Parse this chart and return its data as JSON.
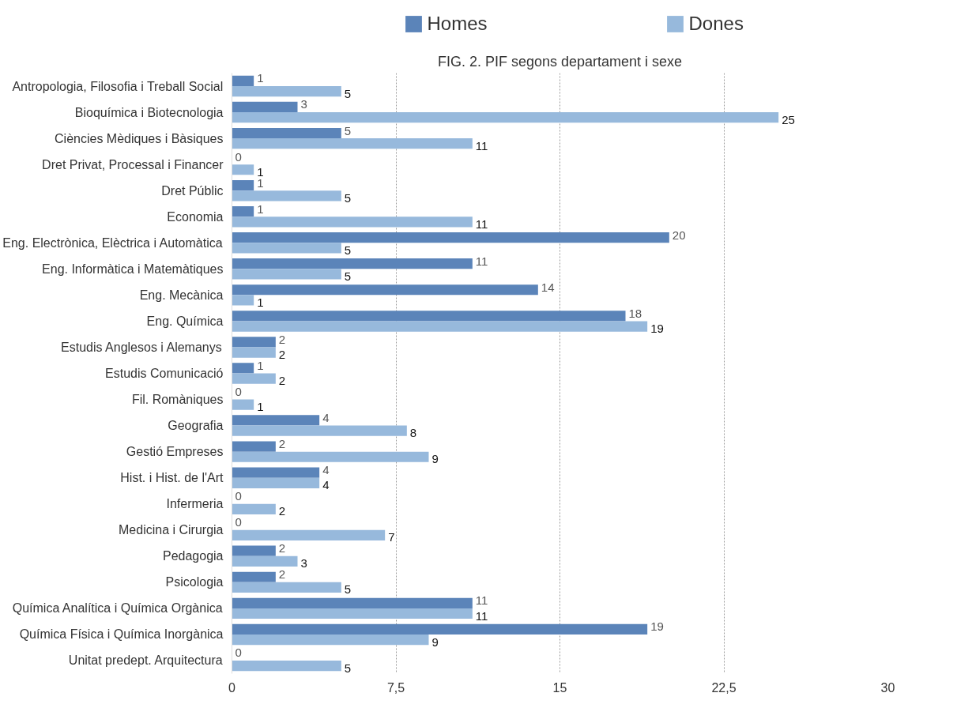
{
  "chart_data": {
    "type": "bar",
    "orientation": "horizontal",
    "title": "FIG. 2. PIF segons departament i sexe",
    "categories": [
      "Antropologia, Filosofia i Treball Social",
      "Bioquímica i Biotecnologia",
      "Ciències Mèdiques i Bàsiques",
      "Dret Privat, Processal i Financer",
      "Dret Públic",
      "Economia",
      "Eng. Electrònica, Elèctrica i Automàtica",
      "Eng. Informàtica i Matemàtiques",
      "Eng. Mecànica",
      "Eng. Química",
      "Estudis Anglesos i Alemanys",
      "Estudis Comunicació",
      "Fil. Romàniques",
      "Geografia",
      "Gestió Empreses",
      "Hist. i Hist. de l'Art",
      "Infermeria",
      "Medicina i Cirurgia",
      "Pedagogia",
      "Psicologia",
      "Química Analítica i Química Orgànica",
      "Química Física i Química Inorgànica",
      "Unitat predept. Arquitectura"
    ],
    "series": [
      {
        "name": "Homes",
        "color": "#5b84b9",
        "values": [
          1,
          3,
          5,
          0,
          1,
          1,
          20,
          11,
          14,
          18,
          2,
          1,
          0,
          4,
          2,
          4,
          0,
          0,
          2,
          2,
          11,
          19,
          0
        ]
      },
      {
        "name": "Dones",
        "color": "#97b9dc",
        "values": [
          5,
          25,
          11,
          1,
          5,
          11,
          5,
          5,
          1,
          19,
          2,
          2,
          1,
          8,
          9,
          4,
          2,
          7,
          3,
          5,
          11,
          9,
          5
        ]
      }
    ],
    "xlim": [
      0,
      30
    ],
    "xticks": [
      0,
      {
        "value": 7.5,
        "label": "7,5"
      },
      15,
      {
        "value": 22.5,
        "label": "22,5"
      },
      30
    ],
    "grid": "x",
    "legend": "top",
    "data_labels": true
  }
}
